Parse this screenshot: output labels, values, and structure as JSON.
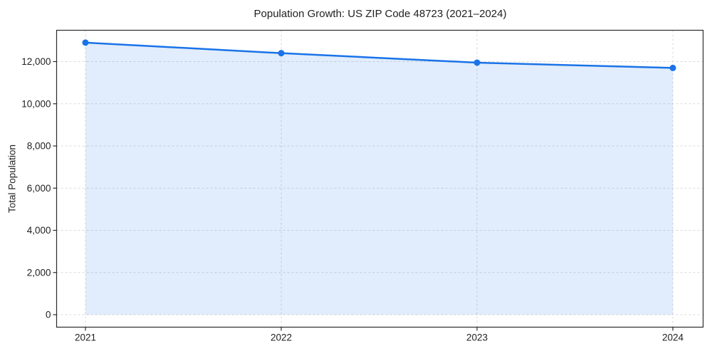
{
  "chart_data": {
    "type": "area",
    "title": "Population Growth: US ZIP Code 48723 (2021–2024)",
    "xlabel": "",
    "ylabel": "Total Population",
    "categories": [
      "2021",
      "2022",
      "2023",
      "2024"
    ],
    "series": [
      {
        "name": "Total Population",
        "values": [
          12900,
          12400,
          11950,
          11700
        ]
      }
    ],
    "ylim": [
      0,
      13500
    ],
    "yticks": {
      "values": [
        0,
        2000,
        4000,
        6000,
        8000,
        10000,
        12000
      ],
      "labels": [
        "0",
        "2,000",
        "4,000",
        "6,000",
        "8,000",
        "10,000",
        "12,000"
      ]
    },
    "grid": true,
    "grid_style": "dashed",
    "legend_position": "none",
    "markers": true,
    "colors": {
      "line": "#1a73e8",
      "marker": "#1a73e8",
      "fill": "rgba(26,115,232,0.13)",
      "grid": "#d9d9d9",
      "spine": "#2b2b2b",
      "text": "#1f1f1f",
      "background": "#ffffff"
    }
  }
}
